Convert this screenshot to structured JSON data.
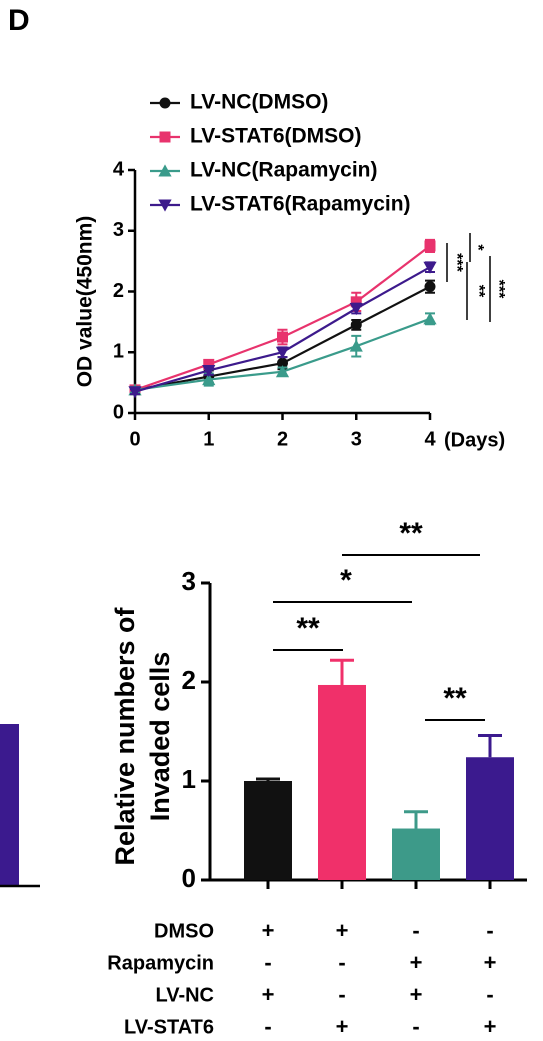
{
  "panel_label": "D",
  "chart_data": [
    {
      "type": "line",
      "y_label": "OD value(450nm)",
      "x_label": "(Days)",
      "x": [
        0,
        1,
        2,
        3,
        4
      ],
      "xlim": [
        0,
        4
      ],
      "xticks": [
        0,
        1,
        2,
        3,
        4
      ],
      "ylim": [
        0,
        4
      ],
      "yticks": [
        0,
        1,
        2,
        3,
        4
      ],
      "series": [
        {
          "name": "LV-NC(DMSO)",
          "color": "#111111",
          "marker": "circle",
          "values": [
            0.38,
            0.6,
            0.82,
            1.45,
            2.08
          ],
          "errors": [
            0.05,
            0.1,
            0.1,
            0.08,
            0.1
          ]
        },
        {
          "name": "LV-STAT6(DMSO)",
          "color": "#e8336d",
          "marker": "square",
          "values": [
            0.38,
            0.8,
            1.25,
            1.83,
            2.75
          ],
          "errors": [
            0.05,
            0.06,
            0.12,
            0.15,
            0.1
          ]
        },
        {
          "name": "LV-NC(Rapamycin)",
          "color": "#3a9b8b",
          "marker": "triangle",
          "values": [
            0.38,
            0.55,
            0.68,
            1.1,
            1.55
          ],
          "errors": [
            0.05,
            0.1,
            0.07,
            0.17,
            0.09
          ]
        },
        {
          "name": "LV-STAT6(Rapamycin)",
          "color": "#3d1a8c",
          "marker": "triangle-down",
          "values": [
            0.35,
            0.7,
            1.0,
            1.72,
            2.4
          ],
          "errors": [
            0.04,
            0.07,
            0.08,
            0.08,
            0.08
          ]
        }
      ],
      "annotations": [
        {
          "text": "***"
        },
        {
          "text": "*"
        },
        {
          "text": "**"
        },
        {
          "text": "***"
        }
      ]
    },
    {
      "type": "bar",
      "y_label": [
        "Relative numbers of",
        "Invaded cells"
      ],
      "categories": [
        null,
        null,
        null,
        null
      ],
      "values": [
        1.0,
        1.97,
        0.52,
        1.24
      ],
      "errors": [
        0.02,
        0.25,
        0.17,
        0.22
      ],
      "colors": [
        "#111111",
        "#f0306a",
        "#3d9a89",
        "#3b1a8e"
      ],
      "ylim": [
        0,
        3
      ],
      "yticks": [
        0,
        1,
        2,
        3
      ],
      "annotations": [
        {
          "text": "**"
        },
        {
          "text": "*"
        },
        {
          "text": "**"
        },
        {
          "text": "**"
        }
      ],
      "treatment_table": [
        {
          "label": "DMSO",
          "marks": [
            "+",
            "+",
            "-",
            "-"
          ]
        },
        {
          "label": "Rapamycin",
          "marks": [
            "-",
            "-",
            "+",
            "+"
          ]
        },
        {
          "label": "LV-NC",
          "marks": [
            "+",
            "-",
            "+",
            "-"
          ]
        },
        {
          "label": "LV-STAT6",
          "marks": [
            "-",
            "+",
            "-",
            "+"
          ]
        }
      ]
    }
  ]
}
